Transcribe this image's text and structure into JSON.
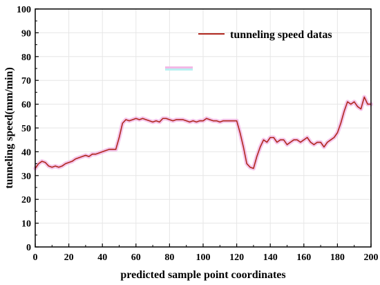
{
  "chart_data": {
    "type": "line",
    "title": "",
    "xlabel": "predicted sample point coordinates",
    "ylabel": "tunneling speed(mm/min)",
    "xlim": [
      0,
      200
    ],
    "ylim": [
      0,
      100
    ],
    "xticks": [
      0,
      20,
      40,
      60,
      80,
      100,
      120,
      140,
      160,
      180,
      200
    ],
    "yticks": [
      0,
      10,
      20,
      30,
      40,
      50,
      60,
      70,
      80,
      90,
      100
    ],
    "grid": true,
    "legend": "top-right",
    "colors": {
      "line": "#b0271e",
      "band": "#f3b8e6",
      "grid": "#e6e6e6",
      "axis": "#000000"
    },
    "series": [
      {
        "name": "tunneling speed datas",
        "x": [
          0,
          2,
          4,
          6,
          8,
          10,
          12,
          14,
          16,
          18,
          20,
          22,
          24,
          26,
          28,
          30,
          32,
          34,
          36,
          38,
          40,
          42,
          44,
          46,
          48,
          50,
          52,
          54,
          56,
          58,
          60,
          62,
          64,
          66,
          68,
          70,
          72,
          74,
          76,
          78,
          80,
          82,
          84,
          86,
          88,
          90,
          92,
          94,
          96,
          98,
          100,
          102,
          104,
          106,
          108,
          110,
          112,
          114,
          116,
          118,
          120,
          122,
          124,
          126,
          128,
          130,
          132,
          134,
          136,
          138,
          140,
          142,
          144,
          146,
          148,
          150,
          152,
          154,
          156,
          158,
          160,
          162,
          164,
          166,
          168,
          170,
          172,
          174,
          176,
          178,
          180,
          182,
          184,
          186,
          188,
          190,
          192,
          194,
          196,
          198,
          200
        ],
        "values": [
          33,
          35,
          36,
          35.5,
          34,
          33.5,
          34,
          33.5,
          34,
          35,
          35.5,
          36,
          37,
          37.5,
          38,
          38.5,
          38,
          39,
          39,
          39.5,
          40,
          40.5,
          41,
          41,
          41,
          46,
          52,
          53.5,
          53,
          53.5,
          54,
          53.5,
          54,
          53.5,
          53,
          52.5,
          53,
          52.5,
          54,
          54,
          53.5,
          53,
          53.5,
          53.5,
          53.5,
          53,
          52.5,
          53,
          52.5,
          53,
          53,
          54,
          53.5,
          53,
          53,
          52.5,
          53,
          53,
          53,
          53,
          53,
          48,
          42,
          35,
          33.5,
          33,
          38,
          42,
          45,
          44,
          46,
          46,
          44,
          45,
          45,
          43,
          44,
          45,
          45,
          44,
          45,
          46,
          44,
          43,
          44,
          44,
          42,
          44,
          45,
          46,
          48,
          52,
          57,
          61,
          60,
          61,
          59,
          58,
          63,
          60,
          60
        ]
      }
    ]
  }
}
